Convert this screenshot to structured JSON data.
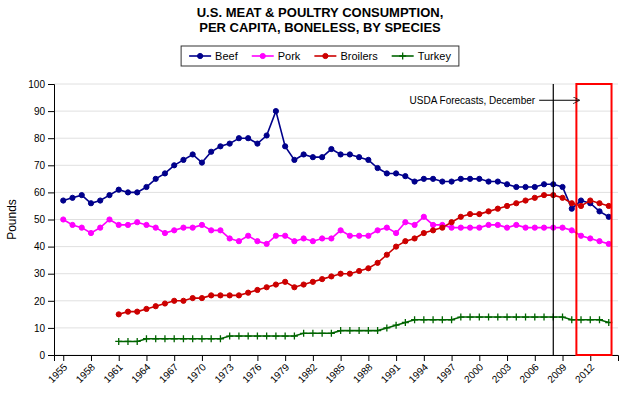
{
  "chart_data": {
    "type": "line",
    "title": "U.S. MEAT & POULTRY CONSUMPTION,\nPER CAPITA, BONELESS, BY SPECIES",
    "y_label": "Pounds",
    "x": [
      1955,
      1956,
      1957,
      1958,
      1959,
      1960,
      1961,
      1962,
      1963,
      1964,
      1965,
      1966,
      1967,
      1968,
      1969,
      1970,
      1971,
      1972,
      1973,
      1974,
      1975,
      1976,
      1977,
      1978,
      1979,
      1980,
      1981,
      1982,
      1983,
      1984,
      1985,
      1986,
      1987,
      1988,
      1989,
      1990,
      1991,
      1992,
      1993,
      1994,
      1995,
      1996,
      1997,
      1998,
      1999,
      2000,
      2001,
      2002,
      2003,
      2004,
      2005,
      2006,
      2007,
      2008,
      2009,
      2010,
      2011,
      2012,
      2013,
      2014
    ],
    "series": [
      {
        "name": "Beef",
        "color": "#00008B",
        "marker": "circle",
        "values": [
          57,
          58,
          59,
          56,
          57,
          59,
          61,
          60,
          60,
          62,
          65,
          67,
          70,
          72,
          74,
          71,
          75,
          77,
          78,
          80,
          80,
          78,
          81,
          90,
          77,
          72,
          74,
          73,
          73,
          76,
          74,
          74,
          73,
          72,
          69,
          67,
          67,
          66,
          64,
          65,
          65,
          64,
          64,
          65,
          65,
          65,
          64,
          64,
          63,
          62,
          62,
          62,
          63,
          63,
          62,
          54,
          57,
          56,
          53,
          51
        ]
      },
      {
        "name": "Pork",
        "color": "#FF00FF",
        "marker": "circle",
        "values": [
          50,
          48,
          47,
          45,
          47,
          50,
          48,
          48,
          49,
          48,
          47,
          45,
          46,
          47,
          47,
          48,
          46,
          46,
          43,
          42,
          44,
          42,
          41,
          44,
          44,
          42,
          43,
          42,
          43,
          43,
          46,
          44,
          44,
          44,
          46,
          47,
          45,
          49,
          48,
          51,
          48,
          48,
          47,
          47,
          47,
          47,
          48,
          48,
          47,
          48,
          47,
          47,
          47,
          47,
          47,
          46,
          44,
          43,
          42,
          41
        ]
      },
      {
        "name": "Broilers",
        "color": "#CC0000",
        "marker": "circle",
        "values": [
          null,
          null,
          null,
          null,
          null,
          null,
          15,
          16,
          16,
          17,
          18,
          19,
          20,
          20,
          21,
          21,
          22,
          22,
          22,
          22,
          23,
          24,
          25,
          26,
          27,
          25,
          26,
          27,
          28,
          29,
          30,
          30,
          31,
          32,
          34,
          37,
          40,
          42,
          43,
          45,
          46,
          47,
          49,
          51,
          52,
          52,
          53,
          54,
          55,
          56,
          57,
          58,
          59,
          59,
          58,
          56,
          55,
          57,
          56,
          55
        ]
      },
      {
        "name": "Turkey",
        "color": "#006400",
        "marker": "plus",
        "values": [
          null,
          null,
          null,
          null,
          null,
          null,
          5,
          5,
          5,
          6,
          6,
          6,
          6,
          6,
          6,
          6,
          6,
          6,
          7,
          7,
          7,
          7,
          7,
          7,
          7,
          7,
          8,
          8,
          8,
          8,
          9,
          9,
          9,
          9,
          9,
          10,
          11,
          12,
          13,
          13,
          13,
          13,
          13,
          14,
          14,
          14,
          14,
          14,
          14,
          14,
          14,
          14,
          14,
          14,
          14,
          13,
          13,
          13,
          13,
          12
        ]
      }
    ],
    "xlim": [
      1954,
      2015
    ],
    "xticks": [
      1955,
      1958,
      1961,
      1964,
      1967,
      1970,
      1973,
      1976,
      1979,
      1982,
      1985,
      1988,
      1991,
      1994,
      1997,
      2000,
      2003,
      2006,
      2009,
      2012
    ],
    "ylim": [
      0,
      100
    ],
    "yticks": [
      0,
      10,
      20,
      30,
      40,
      50,
      60,
      70,
      80,
      90,
      100
    ],
    "grid": true,
    "legend": "top",
    "forecast_line": {
      "x": 2008,
      "color": "black"
    },
    "forecast_box": {
      "x": [
        2010.5,
        2014.3
      ],
      "y": [
        0,
        100
      ],
      "color": "red"
    },
    "annotations": [
      {
        "text": "USDA Forecasts, December",
        "x": 2010.8,
        "y": 94
      }
    ]
  }
}
